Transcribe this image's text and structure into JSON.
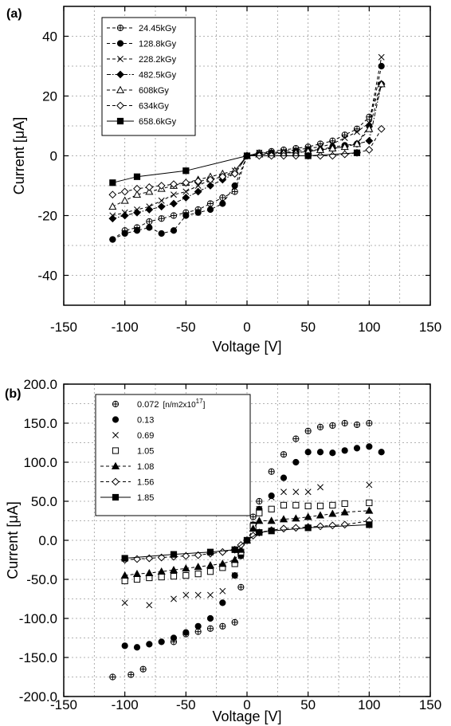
{
  "chart_data": [
    {
      "type": "line",
      "panel_label": "(a)",
      "xlabel": "Voltage [V]",
      "ylabel": "Current [μA]",
      "xlim": [
        -150,
        150
      ],
      "ylim": [
        -50,
        50
      ],
      "xticks": [
        -150,
        -100,
        -50,
        0,
        50,
        100,
        150
      ],
      "yticks": [
        -40,
        -20,
        0,
        20,
        40
      ],
      "ytick_decimals": 0,
      "grid": true,
      "legend_position": "top-left",
      "series": [
        {
          "name": "24.45kGy",
          "marker": "cross-circle",
          "line": "dashed",
          "x": [
            -110,
            -100,
            -90,
            -80,
            -70,
            -60,
            -50,
            -40,
            -30,
            -20,
            -10,
            0,
            10,
            20,
            30,
            40,
            50,
            60,
            70,
            80,
            90,
            100,
            110
          ],
          "y": [
            -28,
            -25,
            -24,
            -22,
            -21,
            -20,
            -19,
            -18,
            -16,
            -14,
            -12,
            0,
            1,
            1.5,
            2,
            2.5,
            3,
            4,
            5,
            7,
            9,
            13,
            24
          ]
        },
        {
          "name": "128.8kGy",
          "marker": "filled-circle",
          "line": "dashed",
          "x": [
            -110,
            -100,
            -90,
            -80,
            -70,
            -60,
            -50,
            -40,
            -30,
            -20,
            -10,
            0,
            10,
            20,
            30,
            40,
            50,
            60,
            70,
            80,
            90,
            100,
            110
          ],
          "y": [
            -28,
            -26,
            -25,
            -24,
            -26,
            -25,
            -20,
            -19,
            -18,
            -16,
            -10,
            0,
            0.5,
            1,
            1,
            1.5,
            2,
            2,
            3,
            3.5,
            4,
            10,
            30
          ]
        },
        {
          "name": "228.2kGy",
          "marker": "x",
          "line": "dashed",
          "x": [
            -110,
            -100,
            -90,
            -80,
            -70,
            -60,
            -50,
            -40,
            -30,
            -20,
            -10,
            0,
            10,
            20,
            30,
            40,
            50,
            60,
            70,
            80,
            90,
            100,
            110
          ],
          "y": [
            -20,
            -19,
            -18,
            -17,
            -15,
            -13,
            -12,
            -10,
            -8,
            -7,
            -5,
            0,
            1,
            1,
            1.5,
            2,
            2.5,
            3,
            4,
            6,
            8,
            11,
            33
          ]
        },
        {
          "name": "482.5kGy",
          "marker": "filled-diamond",
          "line": "dash-dot",
          "x": [
            -110,
            -100,
            -90,
            -80,
            -70,
            -60,
            -50,
            -40,
            -30,
            -20,
            -10,
            0,
            10,
            20,
            30,
            40,
            50,
            60,
            70,
            80,
            90,
            100,
            110
          ],
          "y": [
            -21,
            -20,
            -19,
            -18,
            -17,
            -16,
            -14,
            -12,
            -10,
            -8,
            -6,
            0,
            0.5,
            0.5,
            1,
            1,
            1.5,
            2,
            2.5,
            3,
            4,
            5,
            24
          ]
        },
        {
          "name": "608kGy",
          "marker": "triangle",
          "line": "dashed",
          "x": [
            -110,
            -100,
            -90,
            -80,
            -70,
            -60,
            -50,
            -40,
            -30,
            -20,
            -10,
            0,
            10,
            20,
            30,
            40,
            50,
            60,
            70,
            80,
            90,
            100,
            110
          ],
          "y": [
            -17,
            -15,
            -13,
            -12,
            -11,
            -10,
            -9,
            -8,
            -7,
            -6,
            -5,
            0,
            0.5,
            0.5,
            1,
            1,
            1.5,
            2,
            2.5,
            3,
            4,
            9,
            24
          ]
        },
        {
          "name": "634kGy",
          "marker": "diamond",
          "line": "dashed",
          "x": [
            -110,
            -100,
            -90,
            -80,
            -70,
            -60,
            -50,
            -40,
            -30,
            -20,
            -10,
            0,
            10,
            20,
            30,
            40,
            50,
            60,
            70,
            80,
            90,
            100,
            110
          ],
          "y": [
            -13,
            -12,
            -11,
            -10.5,
            -10,
            -9.5,
            -9,
            -8.5,
            -8,
            -7,
            -6,
            0,
            0,
            0,
            0,
            0,
            0,
            0,
            0,
            0.5,
            1,
            2,
            9
          ]
        },
        {
          "name": "658.6kGy",
          "marker": "filled-square",
          "line": "solid",
          "x": [
            -110,
            -90,
            -50,
            0,
            50,
            90
          ],
          "y": [
            -9,
            -7,
            -5,
            0,
            0,
            1
          ]
        }
      ]
    },
    {
      "type": "scatter",
      "panel_label": "(b)",
      "xlabel": "Voltage [V]",
      "ylabel": "Current [μA]",
      "xlim": [
        -150,
        150
      ],
      "ylim": [
        -200,
        200
      ],
      "xticks": [
        -150,
        -100,
        -50,
        0,
        50,
        100,
        150
      ],
      "yticks": [
        -200,
        -150,
        -100,
        -50,
        0,
        50,
        100,
        150,
        200
      ],
      "ytick_decimals": 1,
      "grid": true,
      "legend_position": "top-left",
      "legend_unit": "[n/m2x10",
      "legend_unit_exponent": "17",
      "legend_unit_close": "]",
      "series": [
        {
          "name": "0.072",
          "marker": "cross-circle",
          "line": "none",
          "x": [
            -110,
            -95,
            -85,
            -60,
            -50,
            -40,
            -30,
            -20,
            -10,
            -5,
            0,
            5,
            10,
            20,
            30,
            40,
            50,
            60,
            70,
            80,
            90,
            100
          ],
          "y": [
            -175,
            -172,
            -165,
            -130,
            -120,
            -117,
            -113,
            -110,
            -105,
            -60,
            0,
            30,
            50,
            88,
            110,
            130,
            140,
            145,
            147,
            150,
            148,
            150
          ]
        },
        {
          "name": "0.13",
          "marker": "filled-circle",
          "line": "none",
          "x": [
            -100,
            -90,
            -80,
            -70,
            -60,
            -50,
            -40,
            -30,
            -20,
            -10,
            -5,
            0,
            5,
            10,
            20,
            30,
            40,
            50,
            60,
            70,
            80,
            90,
            100,
            110
          ],
          "y": [
            -135,
            -137,
            -133,
            -130,
            -125,
            -118,
            -110,
            -100,
            -80,
            -45,
            -20,
            0,
            20,
            40,
            57,
            80,
            100,
            113,
            113,
            112,
            115,
            118,
            120,
            113
          ]
        },
        {
          "name": "0.69",
          "marker": "x",
          "line": "none",
          "x": [
            -100,
            -80,
            -60,
            -50,
            -40,
            -30,
            -20,
            -10,
            -5,
            0,
            5,
            10,
            20,
            30,
            40,
            50,
            60,
            100
          ],
          "y": [
            -80,
            -83,
            -75,
            -70,
            -70,
            -70,
            -65,
            -45,
            -20,
            0,
            20,
            40,
            55,
            62,
            62,
            62,
            68,
            71
          ]
        },
        {
          "name": "1.05",
          "marker": "square",
          "line": "none",
          "x": [
            -100,
            -90,
            -80,
            -70,
            -60,
            -50,
            -40,
            -30,
            -20,
            -10,
            -5,
            0,
            5,
            10,
            20,
            30,
            40,
            50,
            60,
            70,
            80,
            100
          ],
          "y": [
            -52,
            -50,
            -48,
            -47,
            -46,
            -45,
            -43,
            -40,
            -35,
            -30,
            -15,
            0,
            18,
            35,
            40,
            45,
            45,
            44,
            44,
            45,
            47,
            48
          ]
        },
        {
          "name": "1.08",
          "marker": "filled-triangle",
          "line": "dashed",
          "x": [
            -100,
            -90,
            -80,
            -70,
            -60,
            -50,
            -40,
            -30,
            -20,
            -10,
            -5,
            0,
            5,
            10,
            20,
            30,
            40,
            50,
            60,
            70,
            80,
            100
          ],
          "y": [
            -45,
            -43,
            -42,
            -40,
            -38,
            -36,
            -34,
            -32,
            -30,
            -25,
            -12,
            0,
            15,
            25,
            25,
            27,
            28,
            30,
            32,
            34,
            36,
            38
          ]
        },
        {
          "name": "1.56",
          "marker": "diamond",
          "line": "dashed",
          "x": [
            -100,
            -90,
            -80,
            -70,
            -60,
            -50,
            -40,
            -30,
            -20,
            -10,
            -5,
            0,
            5,
            10,
            20,
            30,
            40,
            50,
            60,
            70,
            80,
            100
          ],
          "y": [
            -25,
            -24,
            -23,
            -22,
            -21,
            -20,
            -19,
            -17,
            -15,
            -12,
            -6,
            0,
            6,
            10,
            13,
            15,
            16,
            17,
            18,
            19,
            20,
            25
          ]
        },
        {
          "name": "1.85",
          "marker": "filled-square",
          "line": "solid",
          "x": [
            -100,
            -60,
            -30,
            -10,
            0,
            10,
            20,
            50,
            100
          ],
          "y": [
            -23,
            -18,
            -15,
            -12,
            0,
            10,
            12,
            16,
            20
          ]
        }
      ]
    }
  ]
}
